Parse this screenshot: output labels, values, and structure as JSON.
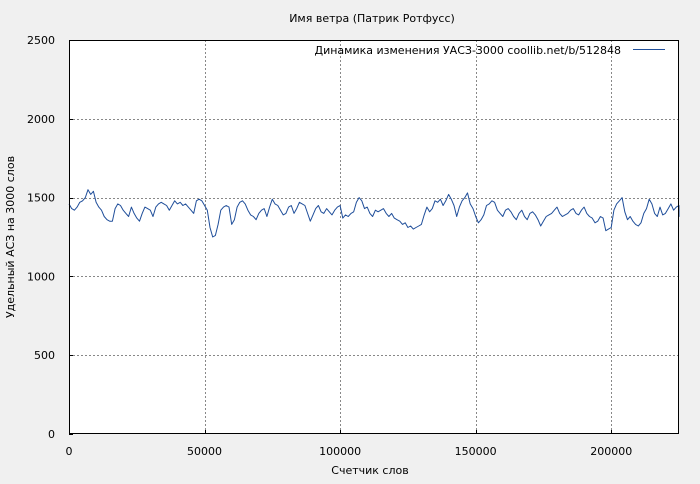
{
  "chart_data": {
    "type": "line",
    "title": "Имя ветра (Патрик Ротфусс)",
    "xlabel": "Счетчик слов",
    "ylabel": "Удельный АСЗ на 3000 слов",
    "xlim": [
      0,
      225000
    ],
    "ylim": [
      0,
      2500
    ],
    "x_ticks": [
      0,
      50000,
      100000,
      150000,
      200000
    ],
    "y_ticks": [
      0,
      500,
      1000,
      1500,
      2000,
      2500
    ],
    "x_tick_labels": [
      "0",
      "50000",
      "100000",
      "150000",
      "200000"
    ],
    "y_tick_labels": [
      "0",
      "500",
      "1000",
      "1500",
      "2000",
      "2500"
    ],
    "grid": true,
    "legend_position": "top-right",
    "series": [
      {
        "name": "Динамика изменения УАСЗ-3000  coollib.net/b/512848",
        "color": "#1f4e9a",
        "x_step": 1000,
        "values": [
          1460,
          1430,
          1420,
          1440,
          1470,
          1480,
          1500,
          1550,
          1520,
          1540,
          1470,
          1440,
          1420,
          1380,
          1360,
          1350,
          1350,
          1430,
          1460,
          1450,
          1420,
          1400,
          1380,
          1440,
          1400,
          1370,
          1350,
          1400,
          1440,
          1430,
          1420,
          1380,
          1440,
          1460,
          1470,
          1460,
          1450,
          1420,
          1450,
          1480,
          1460,
          1470,
          1450,
          1460,
          1440,
          1420,
          1400,
          1480,
          1490,
          1480,
          1450,
          1420,
          1310,
          1250,
          1260,
          1330,
          1420,
          1440,
          1450,
          1440,
          1330,
          1360,
          1440,
          1470,
          1480,
          1460,
          1420,
          1390,
          1380,
          1360,
          1400,
          1420,
          1430,
          1380,
          1440,
          1490,
          1460,
          1450,
          1420,
          1390,
          1400,
          1440,
          1450,
          1400,
          1430,
          1470,
          1460,
          1450,
          1400,
          1350,
          1390,
          1430,
          1450,
          1410,
          1400,
          1430,
          1410,
          1390,
          1420,
          1440,
          1450,
          1370,
          1390,
          1380,
          1400,
          1410,
          1470,
          1500,
          1480,
          1430,
          1440,
          1400,
          1380,
          1420,
          1410,
          1420,
          1430,
          1400,
          1380,
          1400,
          1370,
          1360,
          1350,
          1330,
          1340,
          1310,
          1320,
          1300,
          1310,
          1320,
          1330,
          1390,
          1440,
          1410,
          1430,
          1480,
          1470,
          1490,
          1450,
          1480,
          1520,
          1490,
          1450,
          1380,
          1440,
          1480,
          1500,
          1530,
          1460,
          1430,
          1380,
          1340,
          1360,
          1390,
          1450,
          1460,
          1480,
          1470,
          1420,
          1400,
          1380,
          1420,
          1430,
          1410,
          1380,
          1360,
          1400,
          1420,
          1380,
          1360,
          1400,
          1410,
          1390,
          1360,
          1320,
          1350,
          1380,
          1390,
          1400,
          1420,
          1440,
          1400,
          1380,
          1390,
          1400,
          1420,
          1430,
          1400,
          1390,
          1420,
          1440,
          1400,
          1380,
          1370,
          1340,
          1350,
          1380,
          1370,
          1290,
          1300,
          1310,
          1420,
          1460,
          1480,
          1500,
          1410,
          1360,
          1380,
          1350,
          1330,
          1320,
          1340,
          1400,
          1430,
          1490,
          1460,
          1400,
          1380,
          1440,
          1390,
          1400,
          1430,
          1460,
          1420,
          1440,
          1450,
          1410,
          1400,
          1380,
          1390,
          1450
        ]
      }
    ]
  }
}
